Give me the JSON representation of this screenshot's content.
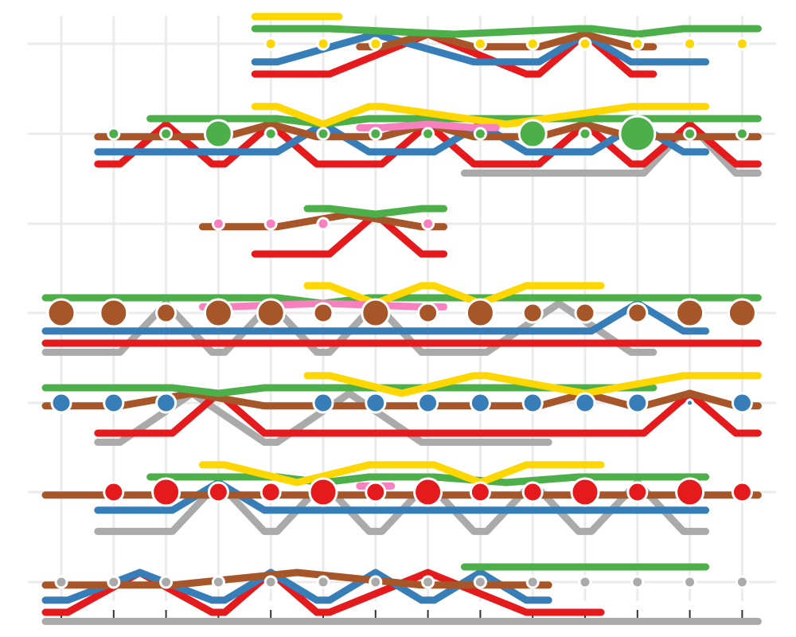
{
  "chart_data": {
    "type": "scatter",
    "description_visible_text": "",
    "x": [
      1,
      2,
      3,
      4,
      5,
      6,
      7,
      8,
      9,
      10,
      11,
      12,
      13,
      14
    ],
    "rows": [
      1,
      2,
      3,
      4,
      5,
      6,
      7
    ],
    "grid": true,
    "legend": "none",
    "palette": {
      "red": "#e41a1c",
      "blue": "#377eb8",
      "green": "#4daf4a",
      "brown": "#a65628",
      "yellow": "#ffd700",
      "gray": "#aaaaaa",
      "pink": "#f781bf"
    },
    "series": [
      {
        "row": 1,
        "node_color": "yellow",
        "nodes": [
          {
            "x": 5,
            "size": 1
          },
          {
            "x": 6,
            "size": 1
          },
          {
            "x": 7,
            "size": 1
          },
          {
            "x": 9,
            "size": 1
          },
          {
            "x": 10,
            "size": 1
          },
          {
            "x": 11,
            "size": 1
          },
          {
            "x": 12,
            "size": 1
          },
          {
            "x": 13,
            "size": 1
          },
          {
            "x": 14,
            "size": 1
          }
        ],
        "links": [
          {
            "color": "red",
            "x": [
              5,
              6,
              10,
              12
            ]
          },
          {
            "color": "blue",
            "x": [
              5,
              9,
              10,
              12,
              13
            ]
          },
          {
            "color": "green",
            "x": [
              5,
              6,
              11,
              13,
              14
            ]
          },
          {
            "color": "brown",
            "x": [
              7,
              9,
              10,
              12
            ]
          },
          {
            "color": "yellow",
            "x": [
              5,
              6
            ]
          }
        ]
      },
      {
        "row": 2,
        "node_color": "green",
        "nodes": [
          {
            "x": 2,
            "size": 1
          },
          {
            "x": 3,
            "size": 1
          },
          {
            "x": 4,
            "size": 3
          },
          {
            "x": 5,
            "size": 1
          },
          {
            "x": 6,
            "size": 1
          },
          {
            "x": 7,
            "size": 1
          },
          {
            "x": 8,
            "size": 1
          },
          {
            "x": 9,
            "size": 1
          },
          {
            "x": 10,
            "size": 3
          },
          {
            "x": 11,
            "size": 1
          },
          {
            "x": 12,
            "size": 4
          },
          {
            "x": 13,
            "size": 1
          },
          {
            "x": 14,
            "size": 1
          }
        ],
        "links": [
          {
            "color": "red",
            "x": [
              2,
              4,
              6,
              7,
              9,
              10,
              12,
              14
            ]
          },
          {
            "color": "blue",
            "x": [
              2,
              3,
              4,
              5,
              7,
              8,
              10,
              11,
              13
            ]
          },
          {
            "color": "green",
            "x": [
              3,
              4,
              5,
              7,
              8,
              9,
              10,
              11,
              12,
              13,
              14
            ]
          },
          {
            "color": "brown",
            "x": [
              2,
              3,
              4,
              6,
              7,
              9,
              10,
              12,
              13,
              14
            ]
          },
          {
            "color": "yellow",
            "x": [
              5,
              7,
              12,
              13
            ]
          },
          {
            "color": "gray",
            "x": [
              9,
              10,
              11,
              12,
              14
            ]
          },
          {
            "color": "pink",
            "x": [
              7,
              9
            ]
          }
        ]
      },
      {
        "row": 3,
        "node_color": "pink",
        "nodes": [
          {
            "x": 4,
            "size": 1
          },
          {
            "x": 5,
            "size": 1
          },
          {
            "x": 6,
            "size": 1
          },
          {
            "x": 8,
            "size": 1
          }
        ],
        "links": [
          {
            "color": "red",
            "x": [
              5,
              6,
              8
            ]
          },
          {
            "color": "brown",
            "x": [
              4,
              5,
              8
            ]
          },
          {
            "color": "green",
            "x": [
              6,
              8
            ]
          }
        ]
      },
      {
        "row": 4,
        "node_color": "brown",
        "nodes": [
          {
            "x": 1,
            "size": 3
          },
          {
            "x": 2,
            "size": 3
          },
          {
            "x": 3,
            "size": 2
          },
          {
            "x": 4,
            "size": 3
          },
          {
            "x": 5,
            "size": 3
          },
          {
            "x": 6,
            "size": 2
          },
          {
            "x": 7,
            "size": 3
          },
          {
            "x": 8,
            "size": 2
          },
          {
            "x": 9,
            "size": 3
          },
          {
            "x": 10,
            "size": 2
          },
          {
            "x": 11,
            "size": 2
          },
          {
            "x": 12,
            "size": 2
          },
          {
            "x": 13,
            "size": 3
          },
          {
            "x": 14,
            "size": 3
          }
        ],
        "links": [
          {
            "color": "red",
            "x": [
              1,
              2,
              3,
              4,
              5,
              6,
              7,
              8,
              9,
              10,
              11,
              12,
              13,
              14
            ]
          },
          {
            "color": "blue",
            "x": [
              1,
              2,
              3,
              4,
              5,
              6,
              7,
              8,
              9,
              10,
              11,
              13
            ]
          },
          {
            "color": "green",
            "x": [
              1,
              2,
              3,
              4,
              5,
              7,
              8,
              9,
              10,
              11,
              12,
              13,
              14
            ]
          },
          {
            "color": "yellow",
            "x": [
              6,
              8,
              10,
              11
            ]
          },
          {
            "color": "gray",
            "x": [
              1,
              2,
              4,
              6,
              8,
              9,
              12
            ]
          },
          {
            "color": "pink",
            "x": [
              4,
              8
            ]
          }
        ]
      },
      {
        "row": 5,
        "node_color": "blue",
        "nodes": [
          {
            "x": 1,
            "size": 2
          },
          {
            "x": 2,
            "size": 2
          },
          {
            "x": 3,
            "size": 2
          },
          {
            "x": 6,
            "size": 2
          },
          {
            "x": 7,
            "size": 2
          },
          {
            "x": 8,
            "size": 2
          },
          {
            "x": 9,
            "size": 2
          },
          {
            "x": 10,
            "size": 2
          },
          {
            "x": 11,
            "size": 2
          },
          {
            "x": 12,
            "size": 2
          },
          {
            "x": 13,
            "size": 0
          },
          {
            "x": 14,
            "size": 2
          }
        ],
        "links": [
          {
            "color": "red",
            "x": [
              2,
              3,
              5,
              6,
              7,
              8,
              9,
              10,
              11,
              12,
              14
            ]
          },
          {
            "color": "brown",
            "x": [
              1,
              2,
              5,
              6,
              7,
              8,
              9,
              10,
              12,
              14
            ]
          },
          {
            "color": "green",
            "x": [
              1,
              2,
              3,
              5,
              6,
              7,
              8,
              9,
              10,
              11,
              12
            ]
          },
          {
            "color": "yellow",
            "x": [
              6,
              9,
              13,
              14
            ]
          },
          {
            "color": "gray",
            "x": [
              2,
              5,
              8,
              9,
              10
            ]
          }
        ]
      },
      {
        "row": 6,
        "node_color": "red",
        "nodes": [
          {
            "x": 2,
            "size": 2
          },
          {
            "x": 3,
            "size": 3
          },
          {
            "x": 4,
            "size": 2
          },
          {
            "x": 5,
            "size": 2
          },
          {
            "x": 6,
            "size": 3
          },
          {
            "x": 7,
            "size": 2
          },
          {
            "x": 8,
            "size": 3
          },
          {
            "x": 9,
            "size": 2
          },
          {
            "x": 10,
            "size": 2
          },
          {
            "x": 11,
            "size": 3
          },
          {
            "x": 12,
            "size": 2
          },
          {
            "x": 13,
            "size": 3
          },
          {
            "x": 14,
            "size": 2
          }
        ],
        "links": [
          {
            "color": "brown",
            "x": [
              1,
              2,
              3,
              4,
              5,
              6,
              7,
              8,
              9,
              10,
              11,
              12,
              13,
              14
            ]
          },
          {
            "color": "blue",
            "x": [
              2,
              3,
              5,
              6,
              7,
              8,
              9,
              10,
              11,
              12,
              13
            ]
          },
          {
            "color": "green",
            "x": [
              3,
              4,
              5,
              7,
              8,
              11,
              12,
              13
            ]
          },
          {
            "color": "yellow",
            "x": [
              4,
              7,
              8,
              10,
              11
            ]
          },
          {
            "color": "gray",
            "x": [
              2,
              3,
              5,
              7,
              9,
              11,
              13
            ]
          },
          {
            "color": "pink",
            "x": [
              7
            ]
          }
        ]
      },
      {
        "row": 7,
        "node_color": "gray",
        "nodes": [
          {
            "x": 1,
            "size": 1
          },
          {
            "x": 2,
            "size": 1
          },
          {
            "x": 3,
            "size": 1
          },
          {
            "x": 4,
            "size": 1
          },
          {
            "x": 5,
            "size": 1
          },
          {
            "x": 6,
            "size": 1
          },
          {
            "x": 7,
            "size": 1
          },
          {
            "x": 8,
            "size": 1
          },
          {
            "x": 9,
            "size": 1
          },
          {
            "x": 10,
            "size": 1
          },
          {
            "x": 11,
            "size": 1
          },
          {
            "x": 12,
            "size": 1
          },
          {
            "x": 13,
            "size": 1
          },
          {
            "x": 14,
            "size": 1
          }
        ],
        "links": [
          {
            "color": "brown",
            "x": [
              1,
              2,
              3,
              8,
              9,
              10
            ]
          },
          {
            "color": "blue",
            "x": [
              1,
              4,
              6,
              8,
              10
            ]
          },
          {
            "color": "red",
            "x": [
              1,
              4,
              6,
              10,
              11
            ]
          },
          {
            "color": "green",
            "x": [
              9,
              10,
              11,
              12,
              13
            ]
          },
          {
            "color": "gray",
            "x": [
              1,
              2,
              3,
              4,
              5,
              6,
              7,
              8,
              9,
              10,
              11,
              12,
              13,
              14
            ]
          }
        ]
      }
    ]
  }
}
